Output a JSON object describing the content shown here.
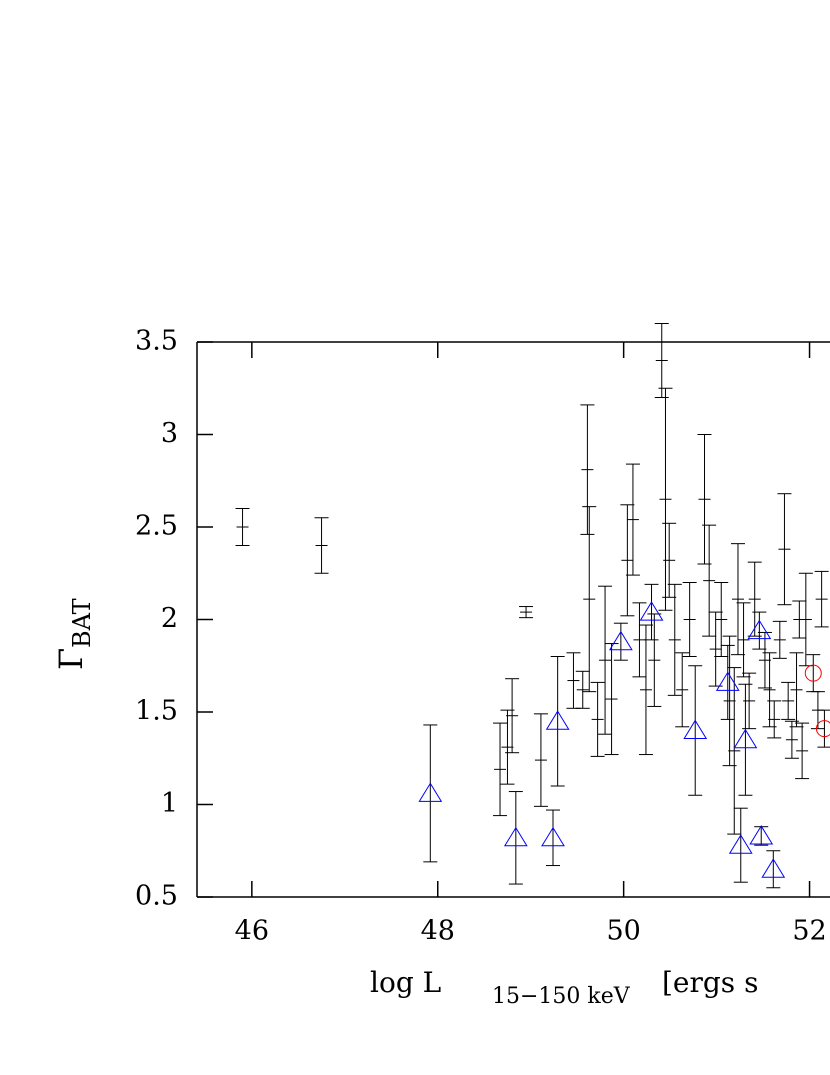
{
  "chart_data": {
    "type": "errorbar-scatter",
    "xlabel": "log L",
    "xlabel_sub": "15−150 keV",
    "xlabel_tail": "[ergs s",
    "ylabel": "Γ",
    "ylabel_sub": "BAT",
    "xlim": [
      45.41,
      52.22
    ],
    "ylim": [
      0.5,
      3.5
    ],
    "xticks": [
      46,
      48,
      50,
      52
    ],
    "yticks": [
      0.5,
      1,
      1.5,
      2,
      2.5,
      3,
      3.5
    ],
    "series": [
      {
        "marker": "cross",
        "color": "#000000",
        "x": [
          45.9,
          46.75,
          48.95,
          48.67,
          48.75,
          48.8,
          49.11,
          49.46,
          49.56,
          49.61,
          49.63,
          49.72,
          49.8,
          49.87,
          50.04,
          50.1,
          50.17,
          50.24,
          50.33,
          50.41,
          50.45,
          50.49,
          50.55,
          50.63,
          50.71,
          50.87,
          50.92,
          50.99,
          51.05,
          51.14,
          51.19,
          51.23,
          51.29,
          51.35,
          51.41,
          51.52,
          51.57,
          51.62,
          51.68,
          51.73,
          51.77,
          51.81,
          51.86,
          51.89,
          51.92,
          51.96,
          52.09,
          52.13
        ],
        "values": [
          2.5,
          2.4,
          2.04,
          1.19,
          1.31,
          1.48,
          1.24,
          1.67,
          1.62,
          2.81,
          2.11,
          1.46,
          1.78,
          1.57,
          2.32,
          2.54,
          1.89,
          1.62,
          1.78,
          3.4,
          2.65,
          2.32,
          1.89,
          1.62,
          2.0,
          2.65,
          2.21,
          1.84,
          2.0,
          1.56,
          1.29,
          2.11,
          1.89,
          1.56,
          2.11,
          1.78,
          1.62,
          1.46,
          1.89,
          2.38,
          1.56,
          1.35,
          1.62,
          2.0,
          1.29,
          2.0,
          1.51,
          2.11
        ],
        "yerr": [
          0.1,
          0.15,
          0.03,
          0.25,
          0.2,
          0.2,
          0.25,
          0.15,
          0.1,
          0.35,
          0.5,
          0.2,
          0.4,
          0.3,
          0.3,
          0.3,
          0.2,
          0.35,
          0.25,
          0.2,
          0.6,
          0.2,
          0.3,
          0.2,
          0.2,
          0.35,
          0.3,
          0.2,
          0.2,
          0.35,
          0.45,
          0.3,
          0.2,
          0.15,
          0.2,
          0.15,
          0.2,
          0.1,
          0.1,
          0.3,
          0.1,
          0.1,
          0.2,
          0.1,
          0.15,
          0.25,
          0.1,
          0.15
        ]
      },
      {
        "marker": "triangle",
        "color": "#0000ff",
        "x": [
          47.92,
          48.84,
          49.24,
          49.29,
          49.97,
          50.3,
          50.77,
          51.12,
          51.26,
          51.31,
          51.46,
          51.48,
          51.61
        ],
        "values": [
          1.06,
          0.82,
          0.82,
          1.45,
          1.88,
          2.04,
          1.4,
          1.66,
          0.78,
          1.35,
          1.94,
          0.83,
          0.65
        ],
        "yerr": [
          0.37,
          0.25,
          0.15,
          0.35,
          0.1,
          0.15,
          0.35,
          0.2,
          0.2,
          0.3,
          0.1,
          0.05,
          0.1
        ]
      },
      {
        "marker": "circle",
        "color": "#ff0000",
        "x": [
          52.04,
          52.16
        ],
        "values": [
          1.71,
          1.41
        ],
        "yerr": [
          0.1,
          0.1
        ]
      }
    ]
  }
}
